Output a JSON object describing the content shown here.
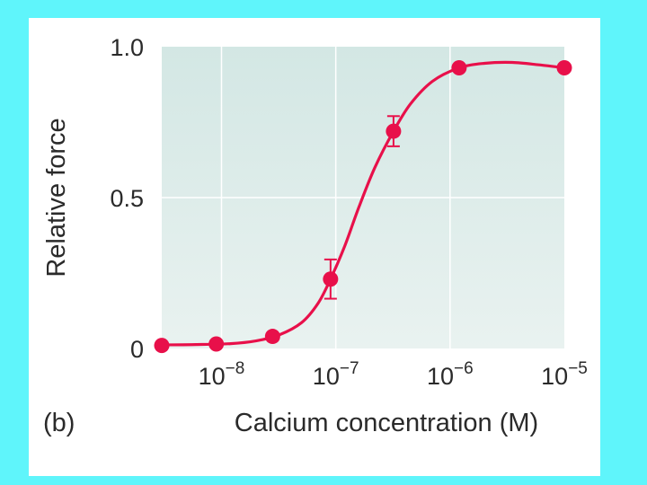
{
  "colors": {
    "background": "#5ff5fb",
    "panel": "#ffffff",
    "plot_area_top": "#d3e7e4",
    "plot_area_bottom": "#e9f2f0",
    "grid": "#ffffff",
    "curve": "#e8104a",
    "text": "#2a2a2a"
  },
  "chart_data": {
    "type": "line",
    "panel_label": "(b)",
    "xlabel": "Calcium concentration (M)",
    "ylabel": "Relative force",
    "x_scale": "log",
    "xlim": [
      3e-09,
      1e-05
    ],
    "ylim": [
      0,
      1.0
    ],
    "grid": true,
    "x_ticks": [
      {
        "value": 1e-08,
        "base": "10",
        "exp": "−8"
      },
      {
        "value": 1e-07,
        "base": "10",
        "exp": "−7"
      },
      {
        "value": 1e-06,
        "base": "10",
        "exp": "−6"
      },
      {
        "value": 1e-05,
        "base": "10",
        "exp": "−5"
      }
    ],
    "y_ticks": [
      {
        "value": 0,
        "label": "0"
      },
      {
        "value": 0.5,
        "label": "0.5"
      },
      {
        "value": 1.0,
        "label": "1.0"
      }
    ],
    "series": [
      {
        "points": [
          {
            "x": 3e-09,
            "y": 0.01
          },
          {
            "x": 9e-09,
            "y": 0.015
          },
          {
            "x": 2.8e-08,
            "y": 0.04
          },
          {
            "x": 9e-08,
            "y": 0.23,
            "err": 0.065
          },
          {
            "x": 3.2e-07,
            "y": 0.72,
            "err": 0.05
          },
          {
            "x": 1.2e-06,
            "y": 0.93
          },
          {
            "x": 1e-05,
            "y": 0.93
          }
        ],
        "fitted_curve": [
          {
            "x": 3e-09,
            "y": 0.012
          },
          {
            "x": 6e-09,
            "y": 0.013
          },
          {
            "x": 1.2e-08,
            "y": 0.016
          },
          {
            "x": 2e-08,
            "y": 0.025
          },
          {
            "x": 3.2e-08,
            "y": 0.045
          },
          {
            "x": 5e-08,
            "y": 0.085
          },
          {
            "x": 7e-08,
            "y": 0.15
          },
          {
            "x": 9e-08,
            "y": 0.23
          },
          {
            "x": 1.2e-07,
            "y": 0.34
          },
          {
            "x": 1.6e-07,
            "y": 0.47
          },
          {
            "x": 2.2e-07,
            "y": 0.6
          },
          {
            "x": 3.2e-07,
            "y": 0.72
          },
          {
            "x": 4.5e-07,
            "y": 0.81
          },
          {
            "x": 7e-07,
            "y": 0.885
          },
          {
            "x": 1.2e-06,
            "y": 0.93
          },
          {
            "x": 2e-06,
            "y": 0.945
          },
          {
            "x": 3.5e-06,
            "y": 0.948
          },
          {
            "x": 6e-06,
            "y": 0.94
          },
          {
            "x": 1e-05,
            "y": 0.93
          }
        ]
      }
    ]
  }
}
